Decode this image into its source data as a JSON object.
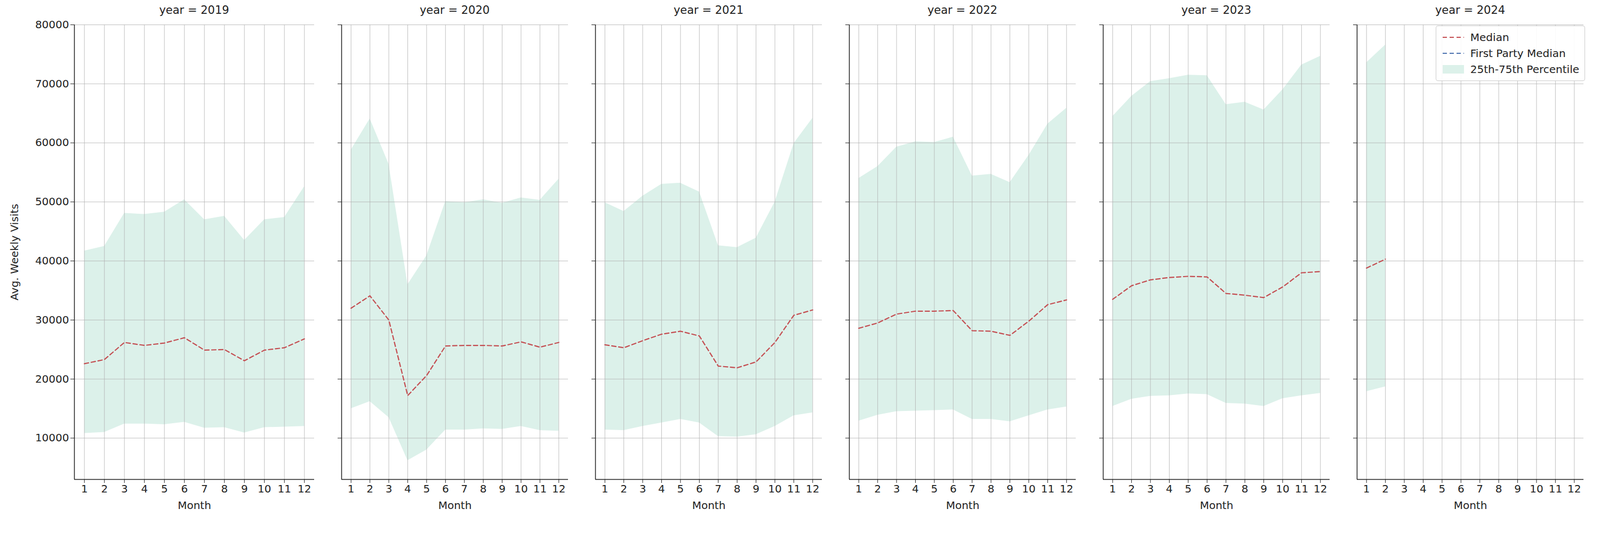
{
  "chart_data": [
    {
      "type": "line",
      "title": "year = 2019",
      "x_label": "Month",
      "y_label": "Avg. Weekly Visits",
      "x": [
        1,
        2,
        3,
        4,
        5,
        6,
        7,
        8,
        9,
        10,
        11,
        12
      ],
      "xlim": [
        0.5,
        12.5
      ],
      "xticks": [
        1,
        2,
        3,
        4,
        5,
        6,
        7,
        8,
        9,
        10,
        11,
        12
      ],
      "ylim": [
        3000,
        80000
      ],
      "yticks": [
        10000,
        20000,
        30000,
        40000,
        50000,
        60000,
        70000,
        80000
      ],
      "grid": true,
      "series": [
        {
          "name": "Median",
          "color": "#c44e52",
          "line_style": "dashed",
          "values": [
            22600,
            23300,
            26200,
            25700,
            26100,
            27000,
            24900,
            25000,
            23100,
            24900,
            25300,
            26800
          ]
        },
        {
          "name": "First Party Median",
          "color": "#4c72b0",
          "line_style": "dashed",
          "values": [
            null,
            null,
            null,
            null,
            null,
            null,
            null,
            null,
            null,
            null,
            null,
            null
          ]
        },
        {
          "name": "25th-75th Percentile",
          "type": "area",
          "color": "#dcf1ea",
          "lower": [
            10800,
            11000,
            12400,
            12400,
            12300,
            12700,
            11700,
            11800,
            10900,
            11800,
            11900,
            12000
          ],
          "upper": [
            41700,
            42500,
            48100,
            47900,
            48300,
            50400,
            47000,
            47600,
            43500,
            47000,
            47400,
            52600
          ]
        }
      ]
    },
    {
      "type": "line",
      "title": "year = 2020",
      "x_label": "Month",
      "tick_labels": "x",
      "x": [
        1,
        2,
        3,
        4,
        5,
        6,
        7,
        8,
        9,
        10,
        11,
        12
      ],
      "xlim": [
        0.5,
        12.5
      ],
      "xticks": [
        1,
        2,
        3,
        4,
        5,
        6,
        7,
        8,
        9,
        10,
        11,
        12
      ],
      "ylim": [
        3000,
        80000
      ],
      "yticks": [
        10000,
        20000,
        30000,
        40000,
        50000,
        60000,
        70000,
        80000
      ],
      "grid": true,
      "series": [
        {
          "name": "Median",
          "color": "#c44e52",
          "line_style": "dashed",
          "values": [
            32000,
            34100,
            30000,
            17200,
            20600,
            25600,
            25700,
            25700,
            25600,
            26300,
            25400,
            26200
          ]
        },
        {
          "name": "First Party Median",
          "color": "#4c72b0",
          "line_style": "dashed",
          "values": [
            null,
            null,
            null,
            null,
            null,
            null,
            null,
            null,
            null,
            null,
            null,
            null
          ]
        },
        {
          "name": "25th-75th Percentile",
          "type": "area",
          "color": "#dcf1ea",
          "lower": [
            15000,
            16200,
            13500,
            6200,
            8000,
            11400,
            11400,
            11600,
            11500,
            12000,
            11300,
            11200
          ],
          "upper": [
            58800,
            64100,
            56400,
            36000,
            40900,
            50100,
            49900,
            50400,
            49800,
            50700,
            50300,
            53900
          ]
        }
      ]
    },
    {
      "type": "line",
      "title": "year = 2021",
      "x_label": "Month",
      "tick_labels": "x",
      "x": [
        1,
        2,
        3,
        4,
        5,
        6,
        7,
        8,
        9,
        10,
        11,
        12
      ],
      "xlim": [
        0.5,
        12.5
      ],
      "xticks": [
        1,
        2,
        3,
        4,
        5,
        6,
        7,
        8,
        9,
        10,
        11,
        12
      ],
      "ylim": [
        3000,
        80000
      ],
      "yticks": [
        10000,
        20000,
        30000,
        40000,
        50000,
        60000,
        70000,
        80000
      ],
      "grid": true,
      "series": [
        {
          "name": "Median",
          "color": "#c44e52",
          "line_style": "dashed",
          "values": [
            25800,
            25300,
            26500,
            27600,
            28100,
            27300,
            22200,
            21900,
            22900,
            26200,
            30800,
            31700
          ]
        },
        {
          "name": "First Party Median",
          "color": "#4c72b0",
          "line_style": "dashed",
          "values": [
            null,
            null,
            null,
            null,
            null,
            null,
            null,
            null,
            null,
            null,
            null,
            null
          ]
        },
        {
          "name": "25th-75th Percentile",
          "type": "area",
          "color": "#dcf1ea",
          "lower": [
            11400,
            11300,
            12000,
            12600,
            13200,
            12600,
            10300,
            10200,
            10600,
            12000,
            13800,
            14300
          ],
          "upper": [
            49900,
            48400,
            51000,
            53000,
            53200,
            51700,
            42600,
            42300,
            43900,
            50000,
            59900,
            64200
          ]
        }
      ]
    },
    {
      "type": "line",
      "title": "year = 2022",
      "x_label": "Month",
      "tick_labels": "x",
      "x": [
        1,
        2,
        3,
        4,
        5,
        6,
        7,
        8,
        9,
        10,
        11,
        12
      ],
      "xlim": [
        0.5,
        12.5
      ],
      "xticks": [
        1,
        2,
        3,
        4,
        5,
        6,
        7,
        8,
        9,
        10,
        11,
        12
      ],
      "ylim": [
        3000,
        80000
      ],
      "yticks": [
        10000,
        20000,
        30000,
        40000,
        50000,
        60000,
        70000,
        80000
      ],
      "grid": true,
      "series": [
        {
          "name": "Median",
          "color": "#c44e52",
          "line_style": "dashed",
          "values": [
            28600,
            29500,
            31000,
            31500,
            31500,
            31600,
            28200,
            28100,
            27400,
            29800,
            32600,
            33400
          ]
        },
        {
          "name": "First Party Median",
          "color": "#4c72b0",
          "line_style": "dashed",
          "values": [
            null,
            null,
            null,
            null,
            null,
            null,
            null,
            null,
            null,
            null,
            null,
            null
          ]
        },
        {
          "name": "25th-75th Percentile",
          "type": "area",
          "color": "#dcf1ea",
          "lower": [
            12900,
            13900,
            14500,
            14600,
            14700,
            14800,
            13200,
            13200,
            12800,
            13800,
            14800,
            15300
          ],
          "upper": [
            54000,
            56000,
            59300,
            60200,
            60100,
            61000,
            54400,
            54700,
            53300,
            57900,
            63200,
            65900
          ]
        }
      ]
    },
    {
      "type": "line",
      "title": "year = 2023",
      "x_label": "Month",
      "tick_labels": "x",
      "x": [
        1,
        2,
        3,
        4,
        5,
        6,
        7,
        8,
        9,
        10,
        11,
        12
      ],
      "xlim": [
        0.5,
        12.5
      ],
      "xticks": [
        1,
        2,
        3,
        4,
        5,
        6,
        7,
        8,
        9,
        10,
        11,
        12
      ],
      "ylim": [
        3000,
        80000
      ],
      "yticks": [
        10000,
        20000,
        30000,
        40000,
        50000,
        60000,
        70000,
        80000
      ],
      "grid": true,
      "series": [
        {
          "name": "Median",
          "color": "#c44e52",
          "line_style": "dashed",
          "values": [
            33500,
            35800,
            36800,
            37200,
            37400,
            37300,
            34500,
            34200,
            33800,
            35600,
            38000,
            38200
          ]
        },
        {
          "name": "First Party Median",
          "color": "#4c72b0",
          "line_style": "dashed",
          "values": [
            null,
            null,
            null,
            null,
            null,
            null,
            null,
            null,
            null,
            null,
            null,
            null
          ]
        },
        {
          "name": "25th-75th Percentile",
          "type": "area",
          "color": "#dcf1ea",
          "lower": [
            15400,
            16600,
            17100,
            17200,
            17500,
            17400,
            15900,
            15800,
            15400,
            16700,
            17200,
            17600
          ],
          "upper": [
            64500,
            67900,
            70400,
            70900,
            71500,
            71400,
            66500,
            66900,
            65600,
            69000,
            73200,
            74700
          ]
        }
      ]
    },
    {
      "type": "line",
      "title": "year = 2024",
      "x_label": "Month",
      "tick_labels": "x",
      "legend": "upper right",
      "x": [
        1,
        2,
        3,
        4,
        5,
        6,
        7,
        8,
        9,
        10,
        11,
        12
      ],
      "xlim": [
        0.5,
        12.5
      ],
      "xticks": [
        1,
        2,
        3,
        4,
        5,
        6,
        7,
        8,
        9,
        10,
        11,
        12
      ],
      "ylim": [
        3000,
        80000
      ],
      "yticks": [
        10000,
        20000,
        30000,
        40000,
        50000,
        60000,
        70000,
        80000
      ],
      "grid": true,
      "series": [
        {
          "name": "Median",
          "color": "#c44e52",
          "line_style": "dashed",
          "values": [
            38800,
            40300,
            null,
            null,
            null,
            null,
            null,
            null,
            null,
            null,
            null,
            null
          ]
        },
        {
          "name": "First Party Median",
          "color": "#4c72b0",
          "line_style": "dashed",
          "values": [
            null,
            null,
            null,
            null,
            null,
            null,
            null,
            null,
            null,
            null,
            null,
            null
          ]
        },
        {
          "name": "25th-75th Percentile",
          "type": "area",
          "color": "#dcf1ea",
          "lower": [
            17900,
            18700,
            null,
            null,
            null,
            null,
            null,
            null,
            null,
            null,
            null,
            null
          ],
          "upper": [
            73600,
            76600,
            null,
            null,
            null,
            null,
            null,
            null,
            null,
            null,
            null,
            null
          ]
        }
      ]
    }
  ]
}
